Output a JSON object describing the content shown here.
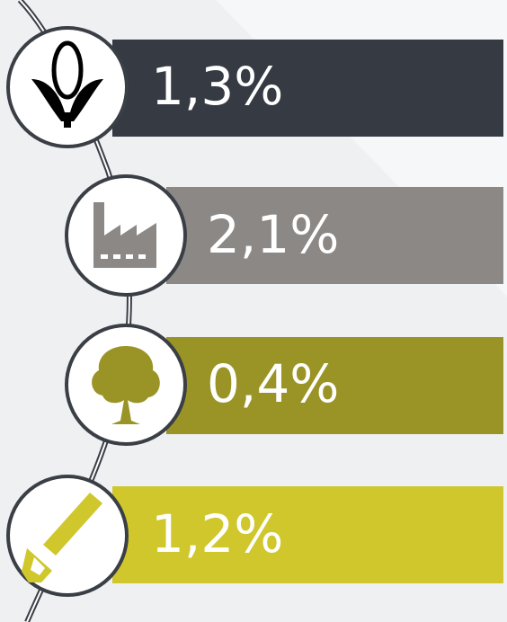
{
  "items": [
    {
      "label": "1,3%",
      "color": "#353a43"
    },
    {
      "label": "2,1%",
      "color": "#8b8886"
    },
    {
      "label": "0,4%",
      "color": "#9a9426"
    },
    {
      "label": "1,2%",
      "color": "#cfc72c"
    }
  ]
}
